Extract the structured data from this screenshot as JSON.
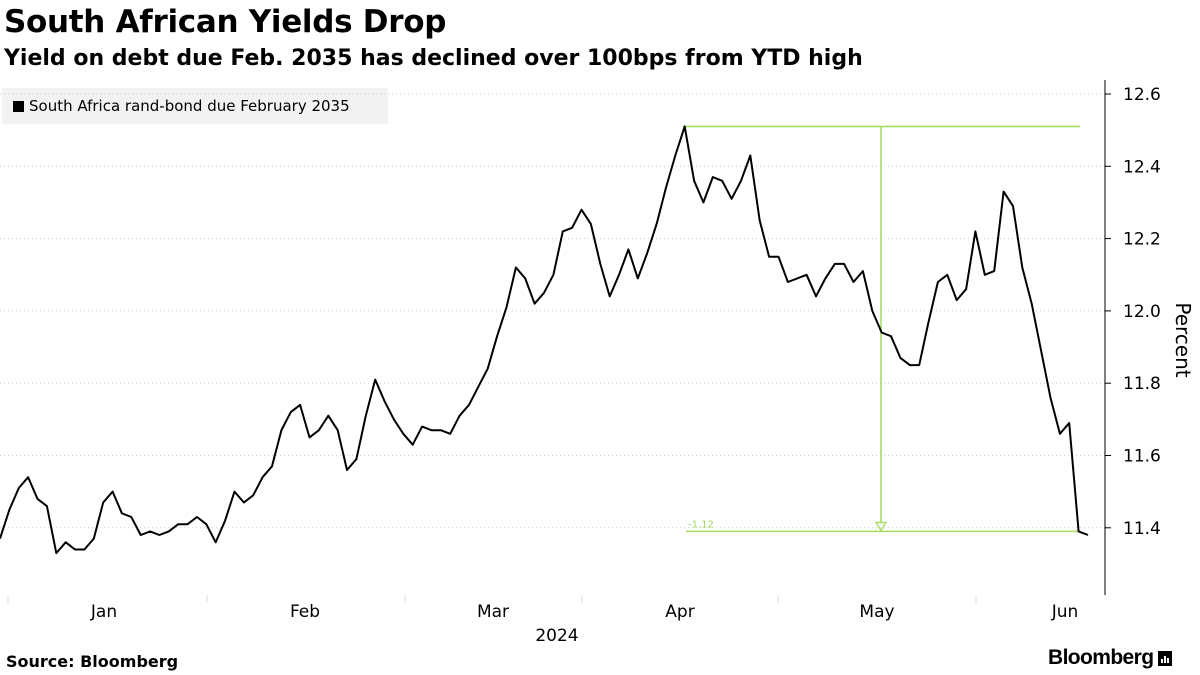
{
  "header": {
    "title": "South African Yields Drop",
    "subtitle": "Yield on debt due Feb. 2035 has declined over 100bps from YTD high"
  },
  "footer": {
    "source": "Source: Bloomberg",
    "brand": "Bloomberg"
  },
  "colors": {
    "series": "#000000",
    "annotation": "#a3dc5a",
    "grid": "#cccccc",
    "legend_bg": "#f2f2f2"
  },
  "chart_data": {
    "type": "line",
    "title": "South African Yields Drop",
    "subtitle": "Yield on debt due Feb. 2035 has declined over 100bps from YTD high",
    "ylabel": "Percent",
    "xlabel": "2024",
    "ylim": [
      11.25,
      12.63
    ],
    "y_ticks": [
      "11.4",
      "11.6",
      "11.8",
      "12.0",
      "12.2",
      "12.4",
      "12.6"
    ],
    "y_tick_values": [
      11.4,
      11.6,
      11.8,
      12.0,
      12.2,
      12.4,
      12.6
    ],
    "x_ticks": [
      "Jan",
      "Feb",
      "Mar",
      "Apr",
      "May",
      "Jun"
    ],
    "x_year_label": "2024",
    "grid": "horizontal dotted",
    "legend_position": "top-left",
    "series": [
      {
        "name": "South Africa rand-bond due February 2035",
        "color": "#000000",
        "values": [
          11.37,
          11.45,
          11.51,
          11.54,
          11.48,
          11.46,
          11.33,
          11.36,
          11.34,
          11.34,
          11.37,
          11.47,
          11.5,
          11.44,
          11.43,
          11.38,
          11.39,
          11.38,
          11.39,
          11.41,
          11.41,
          11.43,
          11.41,
          11.36,
          11.42,
          11.5,
          11.47,
          11.49,
          11.54,
          11.57,
          11.67,
          11.72,
          11.74,
          11.65,
          11.67,
          11.71,
          11.67,
          11.56,
          11.59,
          11.71,
          11.81,
          11.75,
          11.7,
          11.66,
          11.63,
          11.68,
          11.67,
          11.67,
          11.66,
          11.71,
          11.74,
          11.79,
          11.84,
          11.93,
          12.01,
          12.12,
          12.09,
          12.02,
          12.05,
          12.1,
          12.22,
          12.23,
          12.28,
          12.24,
          12.13,
          12.04,
          12.1,
          12.17,
          12.09,
          12.16,
          12.24,
          12.34,
          12.43,
          12.51,
          12.36,
          12.3,
          12.37,
          12.36,
          12.31,
          12.36,
          12.43,
          12.25,
          12.15,
          12.15,
          12.08,
          12.09,
          12.1,
          12.04,
          12.09,
          12.13,
          12.13,
          12.08,
          12.11,
          12,
          11.94,
          11.93,
          11.87,
          11.85,
          11.85,
          11.97,
          12.08,
          12.1,
          12.03,
          12.06,
          12.22,
          12.1,
          12.11,
          12.33,
          12.29,
          12.12,
          12.02,
          11.89,
          11.76,
          11.66,
          11.69,
          11.39,
          11.38
        ]
      }
    ],
    "annotation": {
      "from_value": 12.51,
      "to_value": 11.39,
      "change_label": "-1.12",
      "color": "#a3dc5a"
    }
  }
}
